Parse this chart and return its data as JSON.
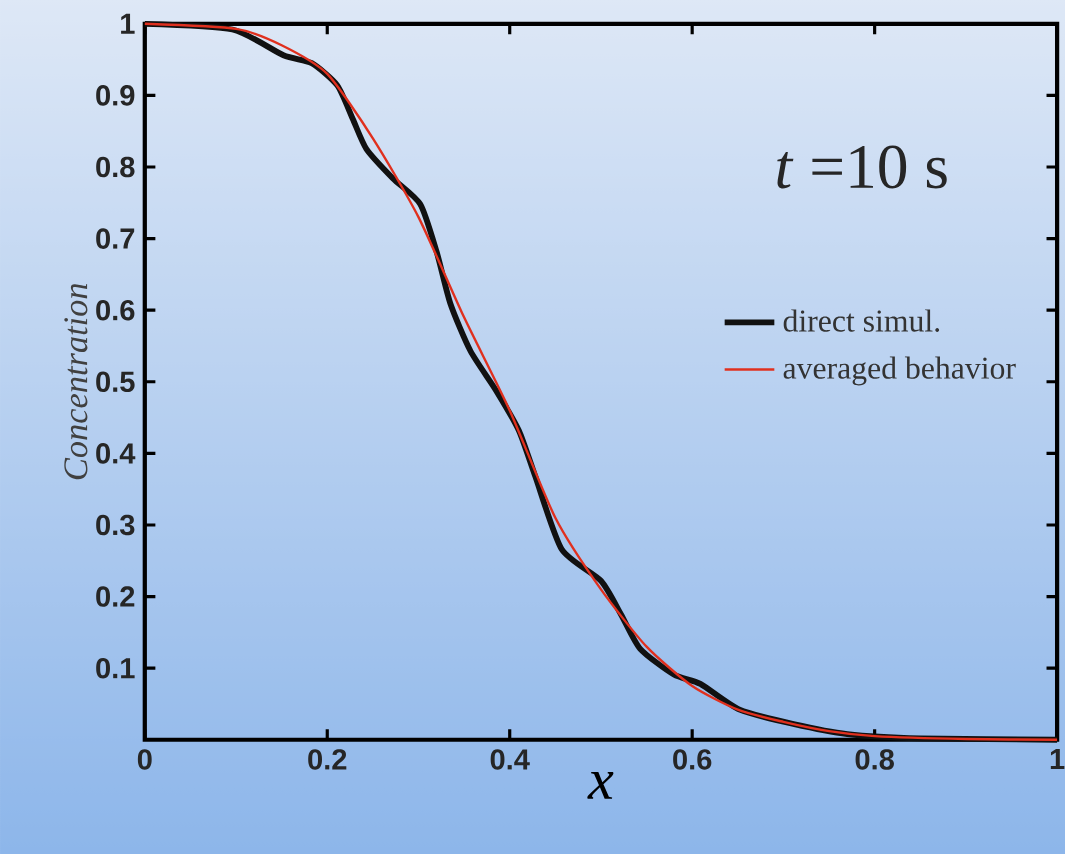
{
  "chart_data": {
    "type": "line",
    "xlabel": "x",
    "ylabel": "Concentration",
    "annotations": [
      "*t* =10 s"
    ],
    "xlim": [
      0,
      1
    ],
    "ylim": [
      0,
      1
    ],
    "xticks": [
      0,
      0.2,
      0.4,
      0.6,
      0.8,
      1
    ],
    "yticks": [
      0.1,
      0.2,
      0.3,
      0.4,
      0.5,
      0.6,
      0.7,
      0.8,
      0.9,
      1
    ],
    "grid": false,
    "legend": "right",
    "marker": "none",
    "line_style": "solid",
    "series": [
      {
        "name": "direct simul.",
        "color": "#111111",
        "x": [
          0,
          0.096,
          0.152,
          0.183,
          0.211,
          0.228,
          0.243,
          0.272,
          0.302,
          0.32,
          0.335,
          0.357,
          0.385,
          0.41,
          0.428,
          0.457,
          0.5,
          0.522,
          0.543,
          0.58,
          0.609,
          0.652,
          0.711,
          0.77,
          0.85,
          1
        ],
        "values": [
          1,
          0.992,
          0.956,
          0.945,
          0.914,
          0.867,
          0.825,
          0.784,
          0.748,
          0.681,
          0.609,
          0.543,
          0.488,
          0.432,
          0.368,
          0.266,
          0.222,
          0.175,
          0.127,
          0.091,
          0.078,
          0.042,
          0.022,
          0.008,
          0.002,
          0
        ]
      },
      {
        "name": "averaged behavior",
        "color": "#e0301e",
        "x": [
          0,
          0.1,
          0.15,
          0.2,
          0.25,
          0.3,
          0.35,
          0.4,
          0.45,
          0.5,
          0.55,
          0.6,
          0.65,
          0.7,
          0.75,
          0.8,
          0.9,
          1
        ],
        "values": [
          1,
          0.993,
          0.97,
          0.93,
          0.84,
          0.73,
          0.59,
          0.46,
          0.31,
          0.21,
          0.13,
          0.075,
          0.042,
          0.025,
          0.012,
          0.005,
          0.001,
          0
        ]
      }
    ]
  }
}
